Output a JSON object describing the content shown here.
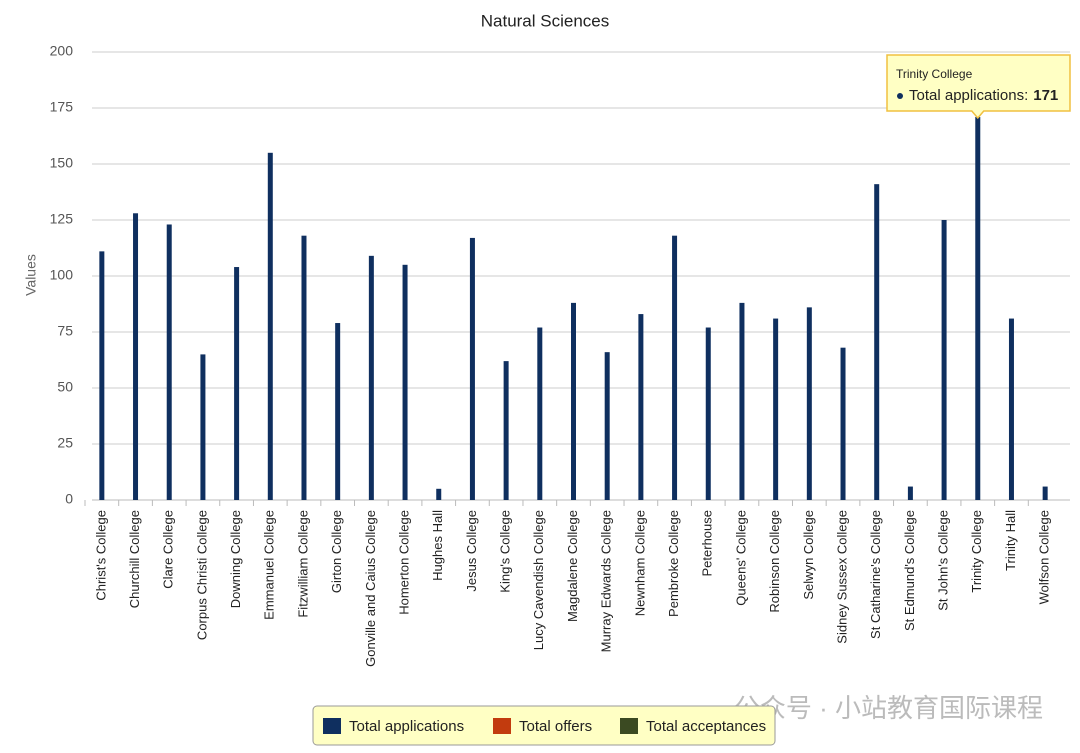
{
  "chart_data": {
    "type": "bar",
    "title": "Natural Sciences",
    "y_label": "Values",
    "categories": [
      "Christ's College",
      "Churchill College",
      "Clare College",
      "Corpus Christi College",
      "Downing College",
      "Emmanuel College",
      "Fitzwilliam College",
      "Girton College",
      "Gonville and Caius College",
      "Homerton College",
      "Hughes Hall",
      "Jesus College",
      "King's College",
      "Lucy Cavendish College",
      "Magdalene College",
      "Murray Edwards College",
      "Newnham College",
      "Pembroke College",
      "Peterhouse",
      "Queens' College",
      "Robinson College",
      "Selwyn College",
      "Sidney Sussex College",
      "St Catharine's College",
      "St Edmund's College",
      "St John's College",
      "Trinity College",
      "Trinity Hall",
      "Wolfson College"
    ],
    "series": [
      {
        "name": "Total applications",
        "color": "#0f2f5f",
        "values": [
          111,
          128,
          123,
          65,
          104,
          155,
          118,
          79,
          109,
          105,
          5,
          117,
          62,
          77,
          88,
          66,
          83,
          118,
          77,
          88,
          81,
          86,
          68,
          141,
          6,
          125,
          171,
          81,
          6
        ]
      },
      {
        "name": "Total offers",
        "color": "#c23b0e",
        "values": [
          null,
          null,
          null,
          null,
          null,
          null,
          null,
          null,
          null,
          null,
          null,
          null,
          null,
          null,
          null,
          null,
          null,
          null,
          null,
          null,
          null,
          null,
          null,
          null,
          null,
          null,
          null,
          null,
          null
        ]
      },
      {
        "name": "Total acceptances",
        "color": "#3b4a22",
        "values": [
          null,
          null,
          null,
          null,
          null,
          null,
          null,
          null,
          null,
          null,
          null,
          null,
          null,
          null,
          null,
          null,
          null,
          null,
          null,
          null,
          null,
          null,
          null,
          null,
          null,
          null,
          null,
          null,
          null
        ]
      }
    ],
    "ylim": [
      0,
      200
    ],
    "yticks": [
      0,
      25,
      50,
      75,
      100,
      125,
      150,
      175,
      200
    ],
    "grid": true,
    "legend": "bottom",
    "tooltip": {
      "title": "Trinity College",
      "label": "Total applications:",
      "value": 171
    },
    "watermark": "公众号 · 小站教育国际课程"
  }
}
